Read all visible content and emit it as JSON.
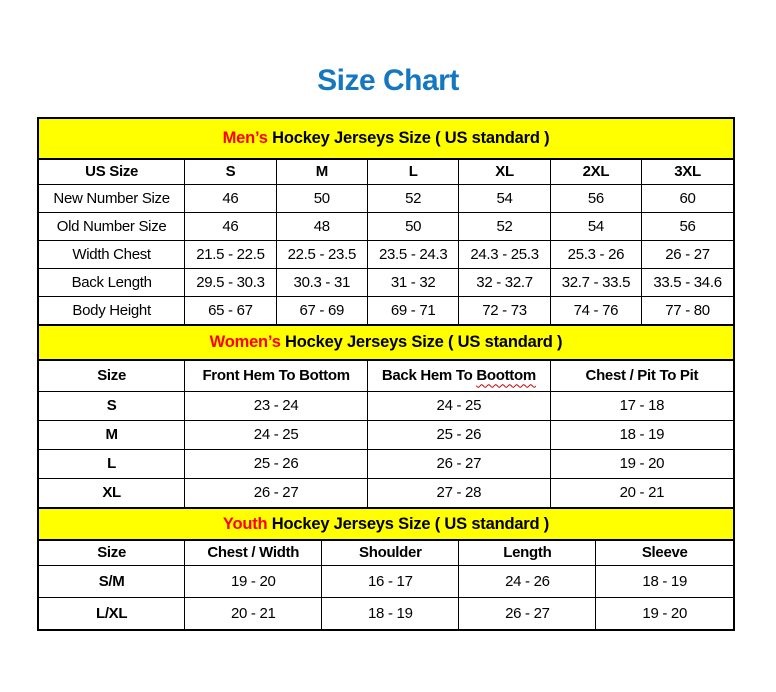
{
  "page": {
    "title": "Size Chart"
  },
  "colors": {
    "title_blue": "#1577c0",
    "accent_red": "#ff0000",
    "banner_yellow": "#ffff00",
    "border_black": "#000000",
    "squiggle_red": "#c00000"
  },
  "men": {
    "banner": {
      "highlight": "Men’s",
      "rest": " Hockey Jerseys Size ( US standard )"
    },
    "columns": [
      "US Size",
      "S",
      "M",
      "L",
      "XL",
      "2XL",
      "3XL"
    ],
    "rows": [
      {
        "label": "New Number Size",
        "values": [
          "46",
          "50",
          "52",
          "54",
          "56",
          "60"
        ]
      },
      {
        "label": "Old Number Size",
        "values": [
          "46",
          "48",
          "50",
          "52",
          "54",
          "56"
        ]
      },
      {
        "label": "Width Chest",
        "values": [
          "21.5 - 22.5",
          "22.5 - 23.5",
          "23.5 - 24.3",
          "24.3 - 25.3",
          "25.3 - 26",
          "26 - 27"
        ]
      },
      {
        "label": "Back Length",
        "values": [
          "29.5 - 30.3",
          "30.3 - 31",
          "31 - 32",
          "32 - 32.7",
          "32.7 - 33.5",
          "33.5 - 34.6"
        ]
      },
      {
        "label": "Body Height",
        "values": [
          "65 - 67",
          "67 - 69",
          "69 - 71",
          "72 - 73",
          "74 - 76",
          "77 - 80"
        ]
      }
    ]
  },
  "women": {
    "banner": {
      "highlight": "Women’s",
      "rest": " Hockey Jerseys Size ( US standard )"
    },
    "columns": [
      "Size",
      "Front Hem To Bottom",
      "Back Hem To Boottom",
      "Chest / Pit To Pit"
    ],
    "back_hem_split": {
      "prefix": "Back Hem To ",
      "misspelled": "Boottom"
    },
    "rows": [
      {
        "label": "S",
        "values": [
          "23 - 24",
          "24 - 25",
          "17 - 18"
        ]
      },
      {
        "label": "M",
        "values": [
          "24 - 25",
          "25 - 26",
          "18 - 19"
        ]
      },
      {
        "label": "L",
        "values": [
          "25 - 26",
          "26 - 27",
          "19 - 20"
        ]
      },
      {
        "label": "XL",
        "values": [
          "26 - 27",
          "27 - 28",
          "20 - 21"
        ]
      }
    ]
  },
  "youth": {
    "banner": {
      "highlight": "Youth",
      "rest": " Hockey Jerseys Size ( US standard )"
    },
    "columns": [
      "Size",
      "Chest / Width",
      "Shoulder",
      "Length",
      "Sleeve"
    ],
    "rows": [
      {
        "label": "S/M",
        "values": [
          "19 - 20",
          "16 - 17",
          "24 - 26",
          "18 - 19"
        ]
      },
      {
        "label": "L/XL",
        "values": [
          "20 - 21",
          "18 - 19",
          "26 - 27",
          "19 - 20"
        ]
      }
    ]
  }
}
